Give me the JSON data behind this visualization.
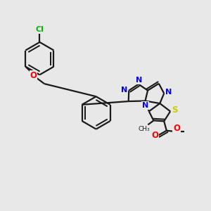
{
  "bg_color": "#e8e8e8",
  "bond_color": "#1a1a1a",
  "N_color": "#0000ff",
  "O_color": "#ff0000",
  "S_color": "#cccc00",
  "Cl_color": "#00bb00",
  "lw": 1.6,
  "figsize": [
    3.0,
    3.0
  ],
  "dpi": 100,
  "xlim": [
    0,
    10
  ],
  "ylim": [
    0,
    10
  ]
}
